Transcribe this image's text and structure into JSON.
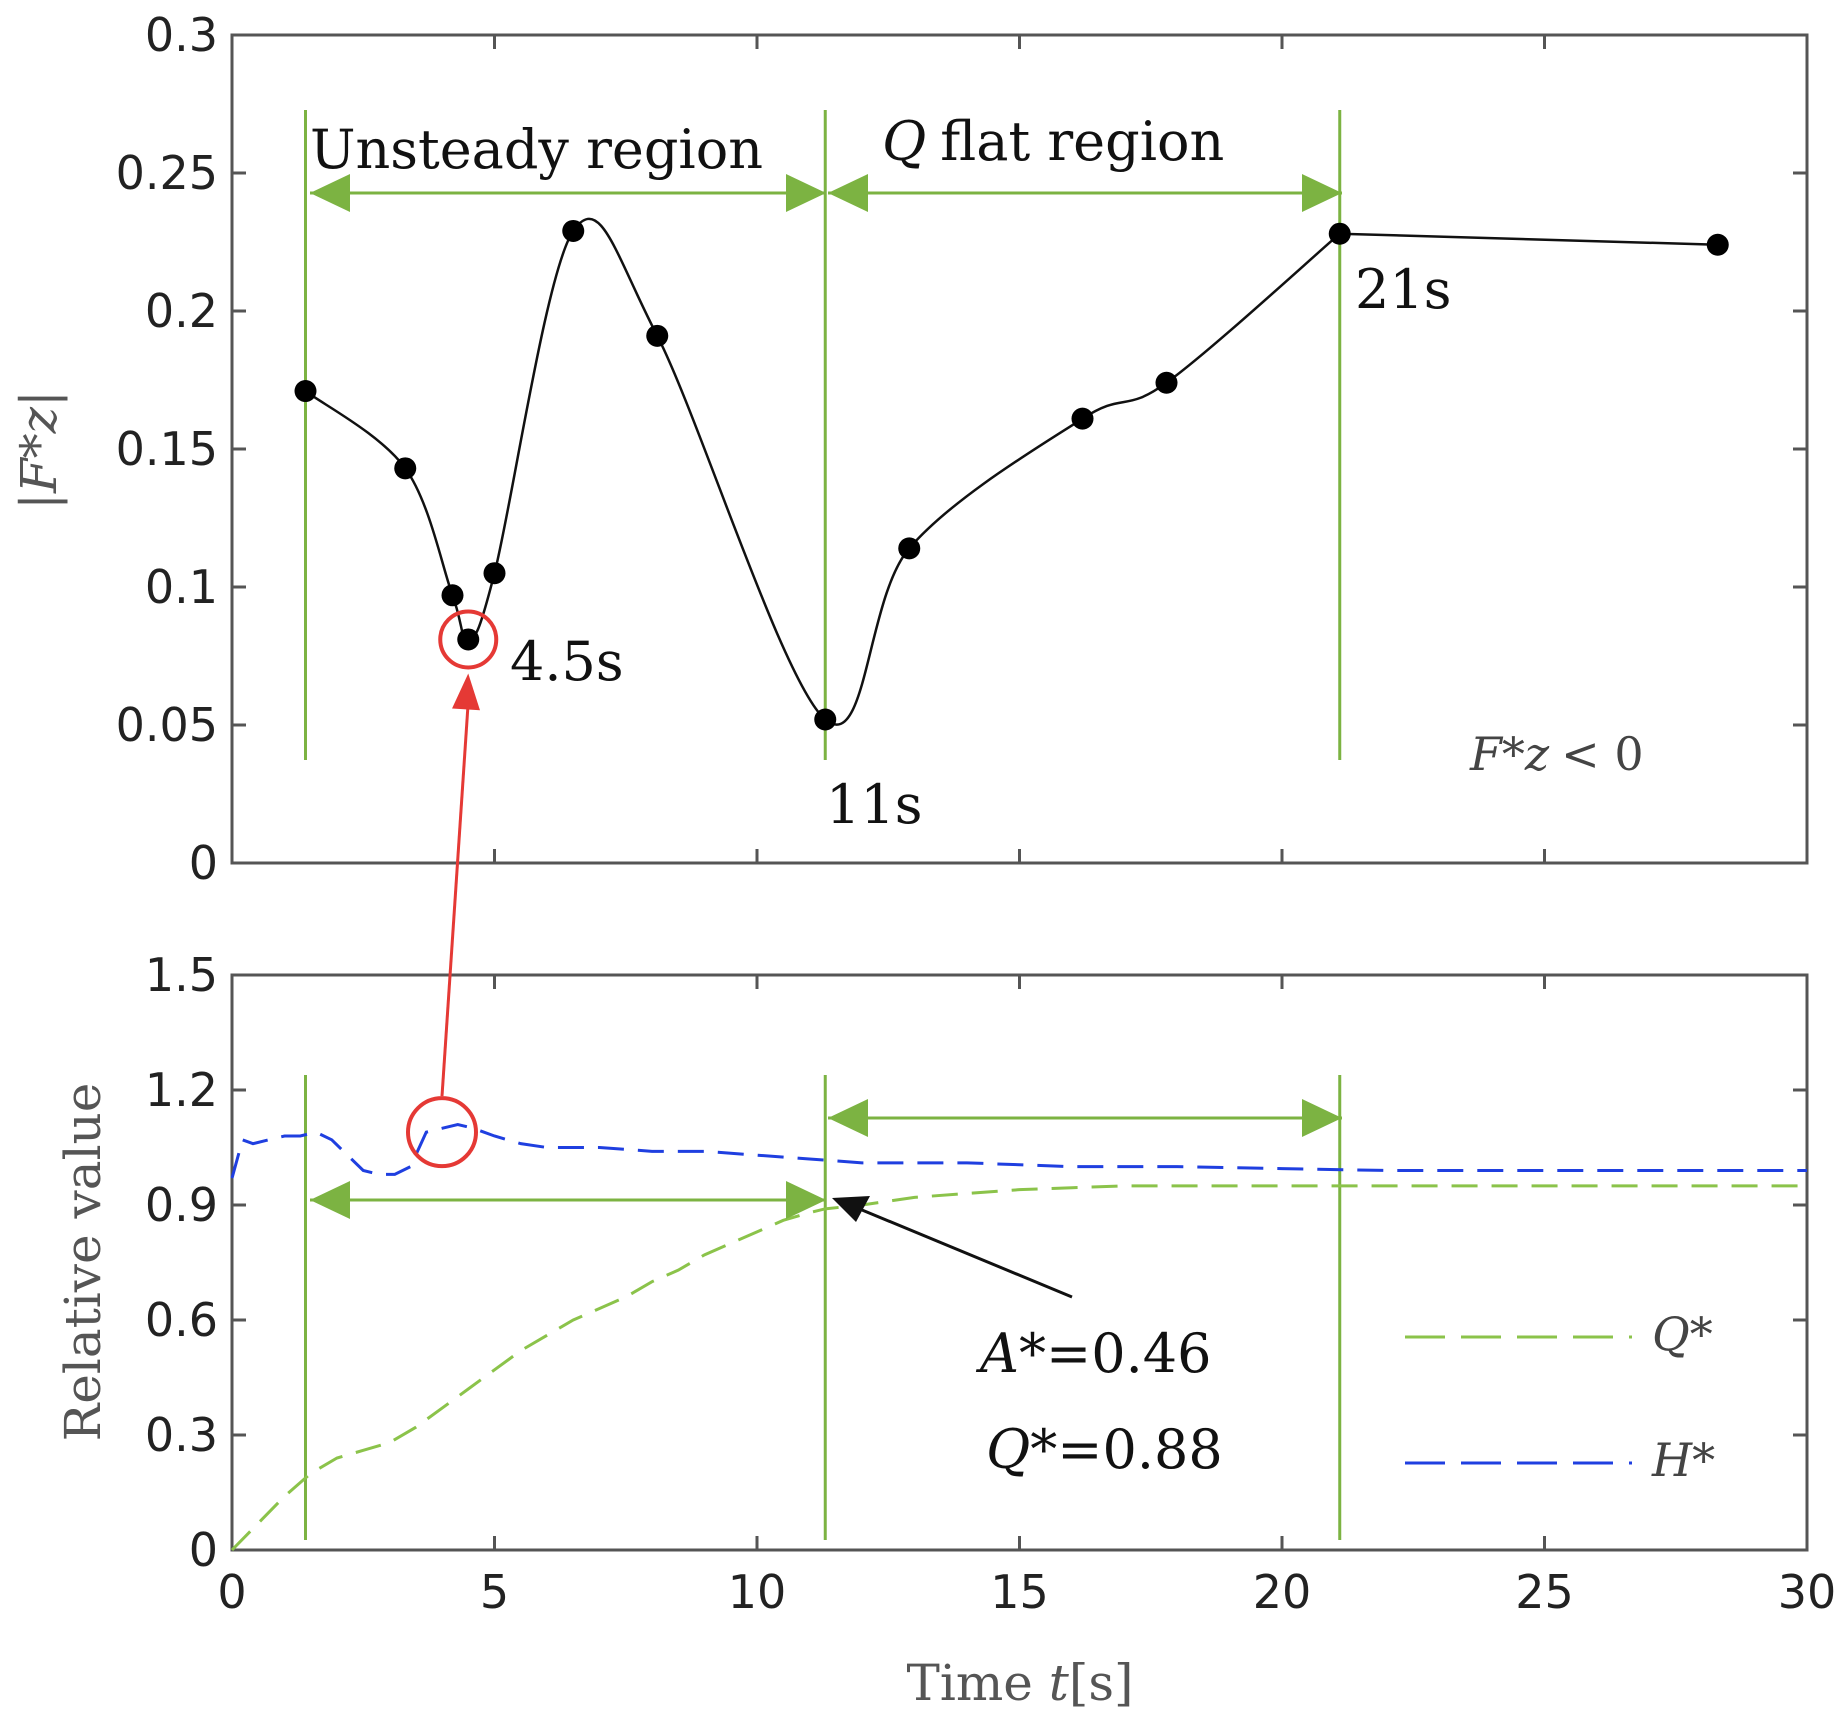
{
  "chart_data": [
    {
      "type": "line",
      "xlim": [
        0,
        30
      ],
      "ylim": [
        0,
        0.3
      ],
      "x_ticks": [
        "0",
        "5",
        "10",
        "15",
        "20",
        "25",
        "30"
      ],
      "y_ticks": [
        "0",
        "0.05",
        "0.1",
        "0.15",
        "0.2",
        "0.25",
        "0.3"
      ],
      "ylabel": "|F*z|",
      "grid": false,
      "series": [
        {
          "color": "#000000",
          "marker": "circle",
          "x": [
            1.4,
            3.3,
            4.2,
            4.5,
            5.0,
            6.5,
            8.1,
            11.3,
            12.9,
            16.2,
            17.8,
            21.1,
            28.3
          ],
          "y": [
            0.171,
            0.143,
            0.097,
            0.081,
            0.105,
            0.229,
            0.191,
            0.052,
            0.114,
            0.161,
            0.174,
            0.228,
            0.224
          ]
        }
      ],
      "region_markers_x": [
        1.4,
        11.3,
        21.1
      ],
      "annotations": {
        "unsteady": "Unsteady region",
        "q_flat_q": "Q",
        "q_flat_rest": "flat region",
        "t45": "4.5s",
        "t11": "11s",
        "t21": "21s",
        "cond_f": "F*z",
        "cond_rest": "< 0"
      },
      "highlight_point": {
        "x": 4.5,
        "y": 0.081
      },
      "colors": {
        "region": "#7cb342",
        "highlight": "#e53935"
      }
    },
    {
      "type": "line",
      "xlim": [
        0,
        30
      ],
      "ylim": [
        0,
        1.5
      ],
      "x_ticks": [
        "0",
        "5",
        "10",
        "15",
        "20",
        "25",
        "30"
      ],
      "y_ticks": [
        "0",
        "0.3",
        "0.6",
        "0.9",
        "1.2",
        "1.5"
      ],
      "xlabel_pre": "Time ",
      "xlabel_var": "t",
      "xlabel_unit": "[s]",
      "ylabel": "Relative value",
      "grid": false,
      "legend": "bottom-right",
      "series": [
        {
          "name": "Q*",
          "color": "#8bc34a",
          "dash": "dashed",
          "x": [
            0,
            0.5,
            1,
            1.5,
            2,
            2.5,
            3,
            3.5,
            4,
            4.5,
            5,
            5.5,
            6,
            6.5,
            7,
            7.5,
            8,
            8.5,
            9,
            9.5,
            10,
            10.5,
            11,
            11.3,
            12,
            13,
            14,
            15,
            16,
            17,
            18,
            19,
            20,
            21,
            22,
            24,
            26,
            28,
            30
          ],
          "y": [
            0,
            0.07,
            0.14,
            0.2,
            0.24,
            0.26,
            0.28,
            0.32,
            0.37,
            0.42,
            0.47,
            0.52,
            0.56,
            0.6,
            0.63,
            0.66,
            0.7,
            0.73,
            0.77,
            0.8,
            0.83,
            0.86,
            0.88,
            0.89,
            0.9,
            0.92,
            0.93,
            0.94,
            0.945,
            0.95,
            0.95,
            0.95,
            0.95,
            0.95,
            0.95,
            0.95,
            0.95,
            0.95,
            0.95
          ]
        },
        {
          "name": "H*",
          "color": "#1f3fe0",
          "dash": "dashed",
          "x": [
            0,
            0.2,
            0.4,
            0.7,
            1,
            1.3,
            1.6,
            1.9,
            2.2,
            2.5,
            2.8,
            3.1,
            3.4,
            3.7,
            4,
            4.3,
            4.6,
            5,
            5.5,
            6,
            7,
            8,
            9,
            10,
            11,
            12,
            13,
            14,
            16,
            18,
            20,
            22,
            24,
            26,
            28,
            30
          ],
          "y": [
            0.97,
            1.07,
            1.06,
            1.07,
            1.08,
            1.08,
            1.09,
            1.07,
            1.03,
            0.99,
            0.98,
            0.98,
            1.0,
            1.09,
            1.1,
            1.11,
            1.1,
            1.08,
            1.06,
            1.05,
            1.05,
            1.04,
            1.04,
            1.03,
            1.02,
            1.01,
            1.01,
            1.01,
            1.0,
            1.0,
            0.995,
            0.99,
            0.99,
            0.99,
            0.99,
            0.99
          ]
        }
      ],
      "region_markers_x": [
        1.4,
        11.3,
        21.1
      ],
      "annotations": {
        "a_label": "A",
        "a_rest": "*=0.46",
        "q_label": "Q",
        "q_rest": "*=0.88"
      },
      "highlight_point": {
        "x": 4.0,
        "y": 1.09
      },
      "arrow_target": {
        "x": 11.3,
        "y": 0.89
      },
      "colors": {
        "region": "#7cb342",
        "highlight": "#e53935"
      }
    }
  ]
}
